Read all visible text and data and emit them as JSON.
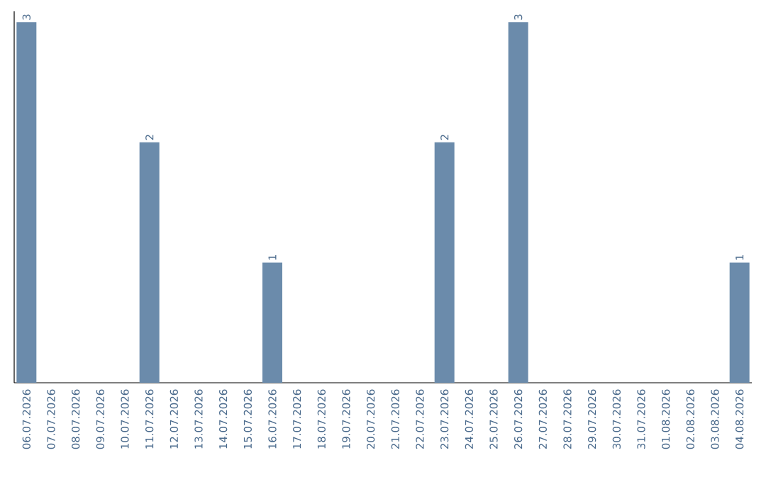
{
  "chart_data": {
    "type": "bar",
    "categories": [
      "06.07.2026",
      "07.07.2026",
      "08.07.2026",
      "09.07.2026",
      "10.07.2026",
      "11.07.2026",
      "12.07.2026",
      "13.07.2026",
      "14.07.2026",
      "15.07.2026",
      "16.07.2026",
      "17.07.2026",
      "18.07.2026",
      "19.07.2026",
      "20.07.2026",
      "21.07.2026",
      "22.07.2026",
      "23.07.2026",
      "24.07.2026",
      "25.07.2026",
      "26.07.2026",
      "27.07.2026",
      "28.07.2026",
      "29.07.2026",
      "30.07.2026",
      "31.07.2026",
      "01.08.2026",
      "02.08.2026",
      "03.08.2026",
      "04.08.2026"
    ],
    "values": [
      3,
      0,
      0,
      0,
      0,
      2,
      0,
      0,
      0,
      0,
      1,
      0,
      0,
      0,
      0,
      0,
      0,
      2,
      0,
      0,
      3,
      0,
      0,
      0,
      0,
      0,
      0,
      0,
      0,
      1
    ],
    "value_labels": [
      "3",
      null,
      null,
      null,
      null,
      "2",
      null,
      null,
      null,
      null,
      "1",
      null,
      null,
      null,
      null,
      null,
      null,
      "2",
      null,
      null,
      "3",
      null,
      null,
      null,
      null,
      null,
      null,
      null,
      null,
      "1"
    ],
    "color": "#6b8bab"
  }
}
